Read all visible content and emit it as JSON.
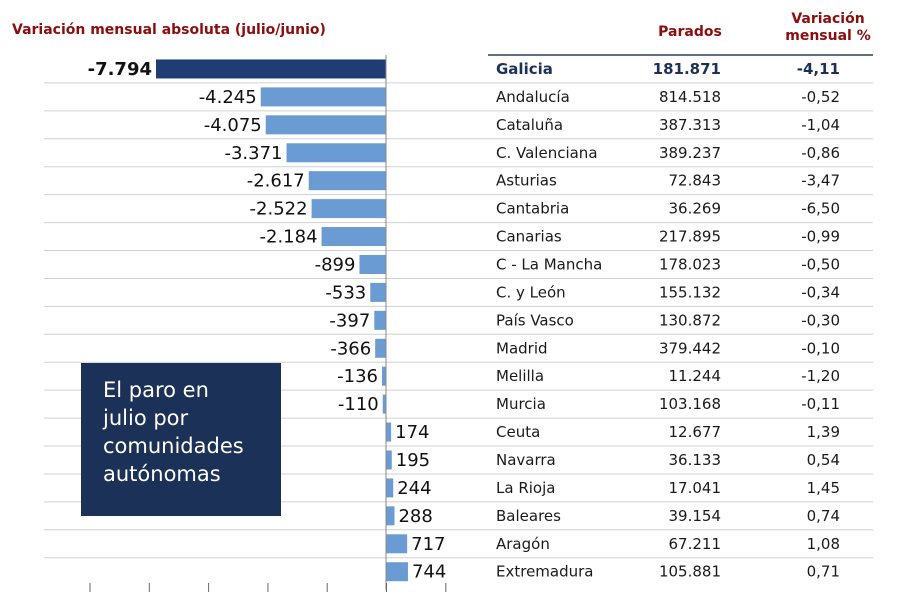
{
  "header": {
    "chart_title": "Variación mensual absoluta (julio/junio)",
    "col_parados": "Parados",
    "col_var_line1": "Variación",
    "col_var_line2": "mensual %"
  },
  "info_box": {
    "lines": [
      "El paro en",
      "julio por",
      "comunidades",
      "autónomas"
    ]
  },
  "colors": {
    "highlight_bar": "#1f3d73",
    "bar": "#6b9bd3",
    "title": "#8b0d0d",
    "box": "#1b3157"
  },
  "chart_data": {
    "type": "bar",
    "orientation": "horizontal",
    "title": "Variación mensual absoluta (julio/junio)",
    "highlight": "Galicia",
    "categories": [
      "Galicia",
      "Andalucía",
      "Cataluña",
      "C. Valenciana",
      "Asturias",
      "Cantabria",
      "Canarias",
      "C - La Mancha",
      "C. y León",
      "País Vasco",
      "Madrid",
      "Melilla",
      "Murcia",
      "Ceuta",
      "Navarra",
      "La Rioja",
      "Baleares",
      "Aragón",
      "Extremadura"
    ],
    "values": [
      -7794,
      -4245,
      -4075,
      -3371,
      -2617,
      -2522,
      -2184,
      -899,
      -533,
      -397,
      -366,
      -136,
      -110,
      174,
      195,
      244,
      288,
      717,
      744
    ],
    "value_labels": [
      "-7.794",
      "-4.245",
      "-4.075",
      "-3.371",
      "-2.617",
      "-2.522",
      "-2.184",
      "-899",
      "-533",
      "-397",
      "-366",
      "-136",
      "-110",
      "174",
      "195",
      "244",
      "288",
      "717",
      "744"
    ],
    "xlim": [
      -10000,
      1000
    ],
    "table": {
      "columns": [
        "Parados",
        "Variación mensual %"
      ],
      "parados": [
        "181.871",
        "814.518",
        "387.313",
        "389.237",
        "72.843",
        "36.269",
        "217.895",
        "178.023",
        "155.132",
        "130.872",
        "379.442",
        "11.244",
        "103.168",
        "12.677",
        "36.133",
        "17.041",
        "39.154",
        "67.211",
        "105.881"
      ],
      "variacion_pct": [
        "-4,11",
        "-0,52",
        "-1,04",
        "-0,86",
        "-3,47",
        "-6,50",
        "-0,99",
        "-0,50",
        "-0,34",
        "-0,30",
        "-0,10",
        "-1,20",
        "-0,11",
        "1,39",
        "0,54",
        "1,45",
        "0,74",
        "1,08",
        "0,71"
      ]
    }
  }
}
